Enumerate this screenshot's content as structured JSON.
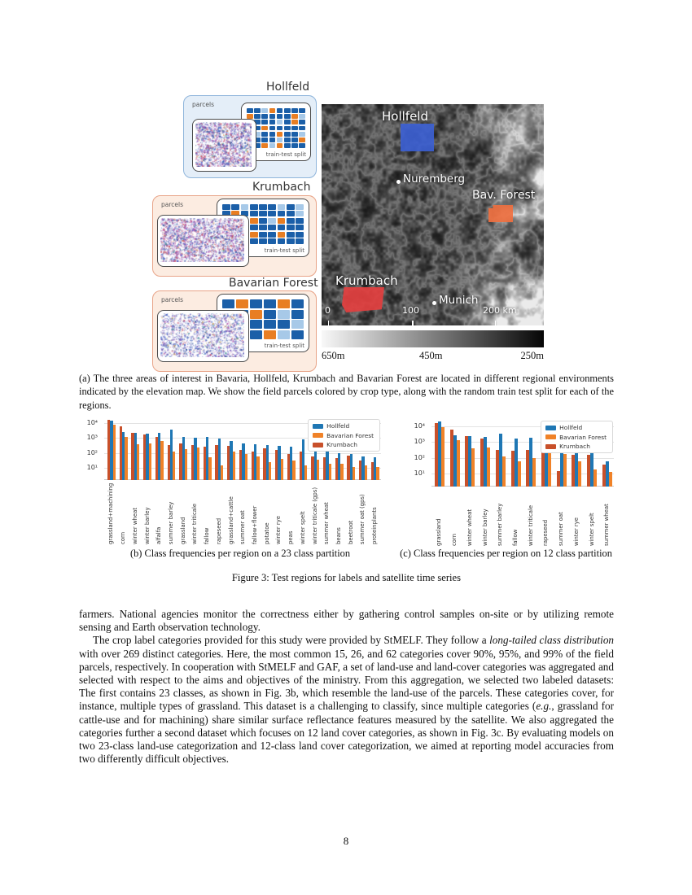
{
  "page_number": "8",
  "colors": {
    "hollfeld": "#1f77b4",
    "bavarian_forest": "#f08228",
    "krumbach": "#c8502a",
    "split_dark_blue": "#1b5fa8",
    "split_light_blue": "#a7c9e8",
    "split_orange": "#e87e23",
    "panel_blue_bg": "#e4eef8",
    "panel_blue_border": "#8fb5db",
    "panel_orange_bg": "#fcece1",
    "panel_orange_border": "#e8a488",
    "map_region_hollfeld": "#3c5fd1",
    "map_region_bav_forest": "#ef7040",
    "map_region_krumbach": "#e33f3f"
  },
  "figure": {
    "panels": [
      {
        "region": "Hollfeld",
        "parcels_label": "parcels",
        "split_label": "train-test split",
        "theme": "blue",
        "split_grid": [
          "DDLODDDD",
          "ODDDDDOL",
          "DDDDLDOD",
          "DDODDDDD",
          "DLDDODDL",
          "ODDDLDDO",
          "DDOLODDD"
        ]
      },
      {
        "region": "Krumbach",
        "parcels_label": "parcels",
        "split_label": "train-test split",
        "theme": "orange",
        "split_grid": [
          "DDLDDDLDL",
          "DODDDDDDL",
          "DDDODLODD",
          "DDDDDDDDD",
          "LDDODDODD",
          "DODDDDDDD"
        ]
      },
      {
        "region": "Bavarian Forest",
        "parcels_label": "parcels",
        "split_label": "train-test split",
        "theme": "orange",
        "split_grid": [
          "DODDOD",
          "DDODLD",
          "DODDDL",
          "ODDOLD"
        ]
      }
    ],
    "map": {
      "labels": {
        "hollfeld": "Hollfeld",
        "nuremberg": "Nuremberg",
        "bav_forest": "Bav. Forest",
        "krumbach": "Krumbach",
        "munich": "Munich"
      },
      "scale_ticks": [
        "0",
        "100",
        "200 km"
      ],
      "colorbar_labels": [
        "650m",
        "450m",
        "250m"
      ]
    },
    "captions": {
      "a": "(a) The three areas of interest in Bavaria, Hollfeld, Krumbach and Bavarian Forest are located in different regional environments indicated by the elevation map. We show the field parcels colored by crop type, along with the random train test split for each of the regions.",
      "figure": "Figure 3: Test regions for labels and satellite time series"
    }
  },
  "chart_data": [
    {
      "type": "bar",
      "caption": "(b) Class frequencies per region on a 23 class partition",
      "y_scale": "log",
      "ylim": [
        1,
        30000
      ],
      "yticks": [
        "10⁴",
        "10³",
        "10²",
        "10¹"
      ],
      "ytick_exponents": [
        4,
        3,
        2,
        1
      ],
      "grid": true,
      "legend_position": "upper right",
      "categories": [
        "grassland+machining",
        "corn",
        "winter wheat",
        "winter barley",
        "alfalfa",
        "summer barley",
        "grassland",
        "winter triticale",
        "fallow",
        "rapeseed",
        "grassland+cattle",
        "summer oat",
        "fallow+flower",
        "potatoe",
        "winter rye",
        "peas",
        "winter spelt",
        "winter triticale (gps)",
        "summer wheat",
        "beans",
        "beetroot",
        "summer oat (gps)",
        "proteinplants"
      ],
      "series": [
        {
          "name": "Hollfeld",
          "color_key": "hollfeld",
          "values": [
            14000,
            2500,
            2200,
            2000,
            2300,
            3600,
            1100,
            1000,
            1100,
            900,
            650,
            450,
            380,
            350,
            300,
            250,
            800,
            150,
            120,
            100,
            90,
            60,
            55
          ]
        },
        {
          "name": "Bavarian Forest",
          "color_key": "bavarian_forest",
          "values": [
            8000,
            1200,
            400,
            450,
            650,
            120,
            190,
            230,
            50,
            15,
            120,
            90,
            60,
            25,
            40,
            30,
            15,
            35,
            20,
            18,
            12,
            15,
            12
          ]
        },
        {
          "name": "Krumbach",
          "color_key": "krumbach",
          "values": [
            15000,
            6000,
            2300,
            1700,
            1100,
            330,
            420,
            330,
            260,
            340,
            300,
            160,
            130,
            200,
            150,
            90,
            120,
            60,
            50,
            45,
            70,
            30,
            25
          ]
        }
      ],
      "bar_draw_order": [
        2,
        0,
        1
      ]
    },
    {
      "type": "bar",
      "caption": "(c) Class frequencies per region on 12 class partition",
      "y_scale": "log",
      "ylim": [
        1,
        30000
      ],
      "yticks": [
        "10⁴",
        "10³",
        "10²",
        "10¹"
      ],
      "ytick_exponents": [
        4,
        3,
        2,
        1
      ],
      "grid": true,
      "legend_position": "upper right",
      "categories": [
        "grassland",
        "corn",
        "winter wheat",
        "winter barley",
        "summer barley",
        "fallow",
        "winter triticale",
        "rapeseed",
        "summer oat",
        "winter rye",
        "winter spelt",
        "summer wheat"
      ],
      "series": [
        {
          "name": "Hollfeld",
          "color_key": "hollfeld",
          "values": [
            20000,
            2800,
            2400,
            2200,
            3600,
            1600,
            2000,
            1100,
            1000,
            220,
            300,
            60
          ]
        },
        {
          "name": "Bavarian Forest",
          "color_key": "bavarian_forest",
          "values": [
            9000,
            1300,
            420,
            480,
            120,
            60,
            100,
            240,
            170,
            60,
            20,
            14
          ]
        },
        {
          "name": "Krumbach",
          "color_key": "krumbach",
          "values": [
            15000,
            6000,
            2300,
            1700,
            330,
            300,
            340,
            420,
            15,
            160,
            150,
            40
          ]
        }
      ],
      "bar_draw_order": [
        2,
        0,
        1
      ]
    }
  ],
  "body_text": {
    "p1": "farmers. National agencies monitor the correctness either by gathering control samples on-site or by utilizing remote sensing and Earth observation technology.",
    "p2_segments": [
      {
        "text": "The crop label categories provided for this study were provided by StMELF. They follow a ",
        "italic": false
      },
      {
        "text": "long-tailed class distribution",
        "italic": true
      },
      {
        "text": " with over 269 distinct categories. Here, the most common 15, 26, and 62 categories cover 90%, 95%, and 99% of the field parcels, respectively. In cooperation with StMELF and GAF, a set of land-use and land-cover categories was aggregated and selected with respect to the aims and objectives of the ministry. From this aggregation, we selected two labeled datasets: The first contains 23 classes, as shown in Fig. 3b, which resemble the land-use of the parcels. These categories cover, for instance, multiple types of grassland. This dataset is a challenging to classify, since multiple categories (",
        "italic": false
      },
      {
        "text": "e.g.",
        "italic": true
      },
      {
        "text": ", grassland for cattle-use and for machining) share similar surface reflectance features measured by the satellite. We also aggregated the categories further a second dataset which focuses on 12 land cover categories, as shown in Fig. 3c. By evaluating models on two 23-class land-use categorization and 12-class land cover categorization, we aimed at reporting model accuracies from two differently difficult objectives.",
        "italic": false
      }
    ]
  }
}
